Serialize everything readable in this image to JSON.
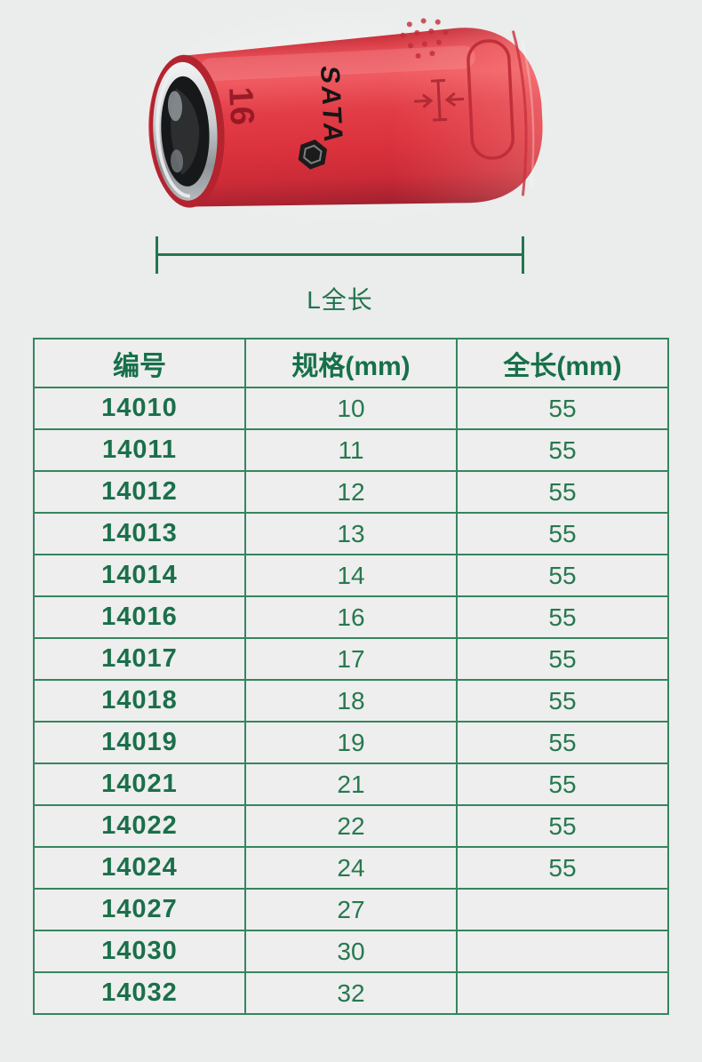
{
  "page": {
    "background_color": "#ebecec"
  },
  "product_photo": {
    "description": "red insulated hex socket lying on side",
    "brand_marking": "SATA",
    "size_marking": "16",
    "body_color": "#e23d47",
    "marking_color": "#1a1a1a"
  },
  "dimension_indicator": {
    "label": "L全长",
    "line_color": "#24764f"
  },
  "spec_table": {
    "border_color": "#35855f",
    "header_text_color": "#17704a",
    "cell_text_color": "#27784f",
    "headers": [
      "编号",
      "规格(mm)",
      "全长(mm)"
    ],
    "rows": [
      [
        "14010",
        "10",
        "55"
      ],
      [
        "14011",
        "11",
        "55"
      ],
      [
        "14012",
        "12",
        "55"
      ],
      [
        "14013",
        "13",
        "55"
      ],
      [
        "14014",
        "14",
        "55"
      ],
      [
        "14016",
        "16",
        "55"
      ],
      [
        "14017",
        "17",
        "55"
      ],
      [
        "14018",
        "18",
        "55"
      ],
      [
        "14019",
        "19",
        "55"
      ],
      [
        "14021",
        "21",
        "55"
      ],
      [
        "14022",
        "22",
        "55"
      ],
      [
        "14024",
        "24",
        "55"
      ],
      [
        "14027",
        "27",
        ""
      ],
      [
        "14030",
        "30",
        ""
      ],
      [
        "14032",
        "32",
        ""
      ]
    ]
  }
}
